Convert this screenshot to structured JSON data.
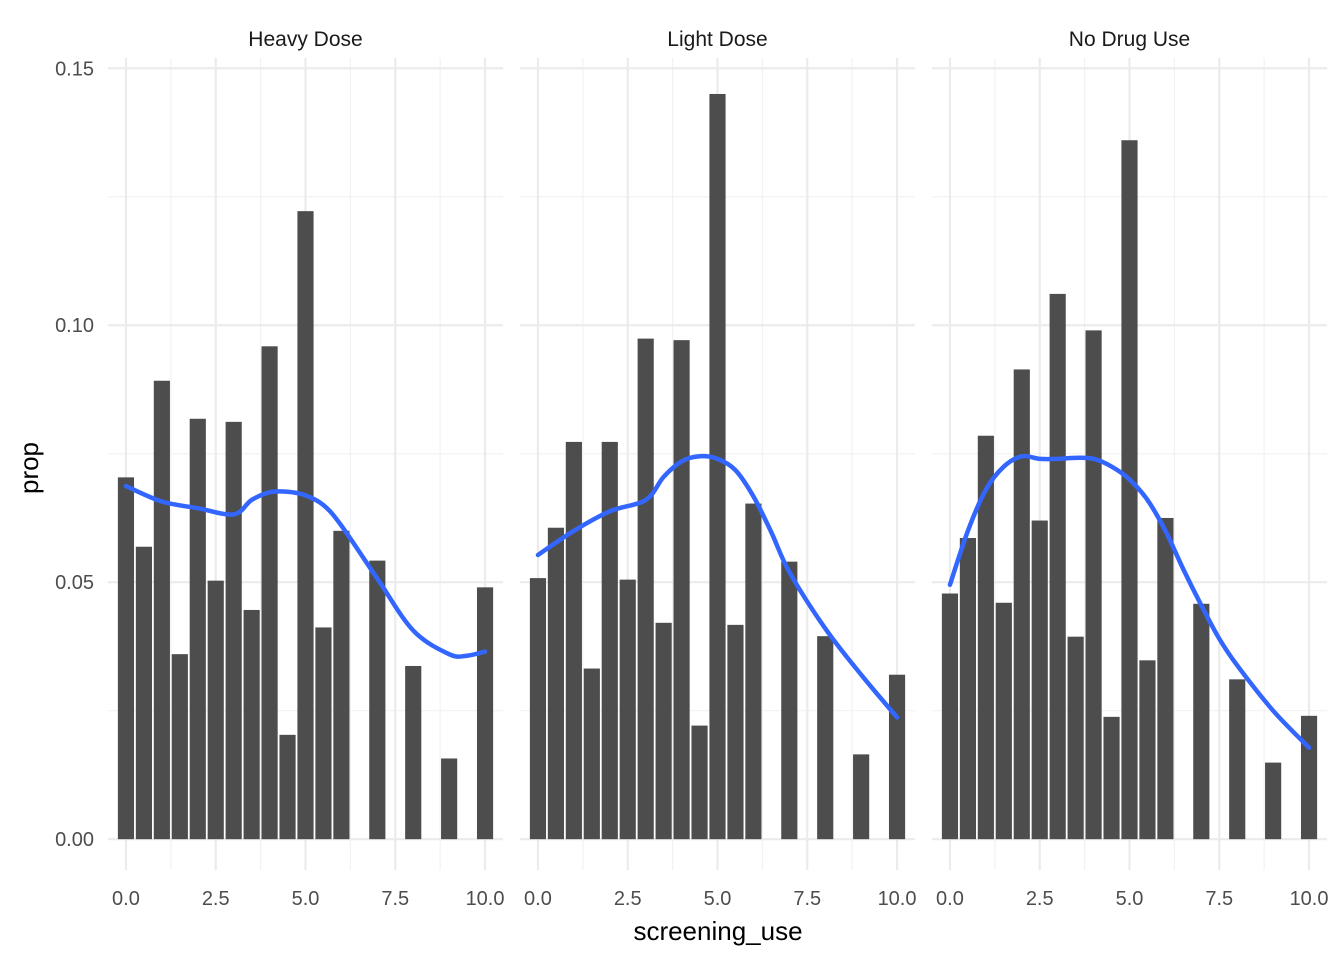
{
  "chart_data": {
    "type": "bar",
    "xlabel": "screening_use",
    "ylabel": "prop",
    "xlim": [
      -0.5,
      10.5
    ],
    "ylim": [
      -0.006,
      0.152
    ],
    "x_ticks": [
      0,
      2.5,
      5,
      7.5,
      10
    ],
    "x_tick_labels": [
      "0.0",
      "2.5",
      "5.0",
      "7.5",
      "10.0"
    ],
    "y_ticks": [
      0,
      0.05,
      0.1,
      0.15
    ],
    "y_tick_labels": [
      "0.00",
      "0.05",
      "0.10",
      "0.15"
    ],
    "grid": true,
    "smooth_color": "#3366FF",
    "bar_color": "#4D4D4D",
    "panels": [
      {
        "name": "Heavy Dose",
        "x": [
          0,
          0.5,
          1,
          1.5,
          2,
          2.5,
          3,
          3.5,
          4,
          4.5,
          5,
          5.5,
          6,
          7,
          8,
          9,
          10
        ],
        "values": [
          0.0704,
          0.0569,
          0.0892,
          0.036,
          0.0818,
          0.0503,
          0.0812,
          0.0446,
          0.0959,
          0.0203,
          0.1222,
          0.0412,
          0.06,
          0.0542,
          0.0337,
          0.0157,
          0.049
        ],
        "smooth": {
          "x": [
            0,
            1,
            2,
            3,
            3.5,
            4,
            4.5,
            5,
            5.5,
            6,
            7,
            8,
            9,
            9.5,
            10
          ],
          "y": [
            0.0687,
            0.0657,
            0.0644,
            0.0632,
            0.066,
            0.0675,
            0.0676,
            0.0669,
            0.065,
            0.061,
            0.0507,
            0.0406,
            0.036,
            0.0357,
            0.0365
          ]
        }
      },
      {
        "name": "Light Dose",
        "x": [
          0,
          0.5,
          1,
          1.5,
          2,
          2.5,
          3,
          3.5,
          4,
          4.5,
          5,
          5.5,
          6,
          7,
          8,
          9,
          10
        ],
        "values": [
          0.0508,
          0.0606,
          0.0773,
          0.0332,
          0.0773,
          0.0505,
          0.0974,
          0.0421,
          0.0971,
          0.0221,
          0.145,
          0.0417,
          0.0653,
          0.054,
          0.0395,
          0.0165,
          0.032
        ],
        "smooth": {
          "x": [
            0,
            1,
            2,
            3,
            3.5,
            4,
            4.5,
            5,
            5.5,
            6,
            6.5,
            7,
            8,
            9,
            10
          ],
          "y": [
            0.0553,
            0.06,
            0.0638,
            0.066,
            0.0705,
            0.0735,
            0.0745,
            0.074,
            0.0718,
            0.0667,
            0.0597,
            0.052,
            0.041,
            0.032,
            0.0237
          ]
        }
      },
      {
        "name": "No Drug Use",
        "x": [
          0,
          0.5,
          1,
          1.5,
          2,
          2.5,
          3,
          3.5,
          4,
          4.5,
          5,
          5.5,
          6,
          7,
          8,
          9,
          10
        ],
        "values": [
          0.0478,
          0.0586,
          0.0785,
          0.046,
          0.0914,
          0.062,
          0.1061,
          0.0394,
          0.099,
          0.0238,
          0.136,
          0.0348,
          0.0625,
          0.0458,
          0.0311,
          0.0149,
          0.024
        ],
        "smooth": {
          "x": [
            0,
            0.5,
            1,
            1.5,
            2,
            2.5,
            3,
            3.5,
            4,
            4.5,
            5,
            5.5,
            6,
            6.5,
            7,
            7.5,
            8,
            9,
            10
          ],
          "y": [
            0.0495,
            0.06,
            0.068,
            0.0725,
            0.0745,
            0.074,
            0.074,
            0.0742,
            0.074,
            0.0725,
            0.07,
            0.066,
            0.06,
            0.0525,
            0.0455,
            0.039,
            0.0338,
            0.025,
            0.0178
          ]
        }
      }
    ]
  }
}
